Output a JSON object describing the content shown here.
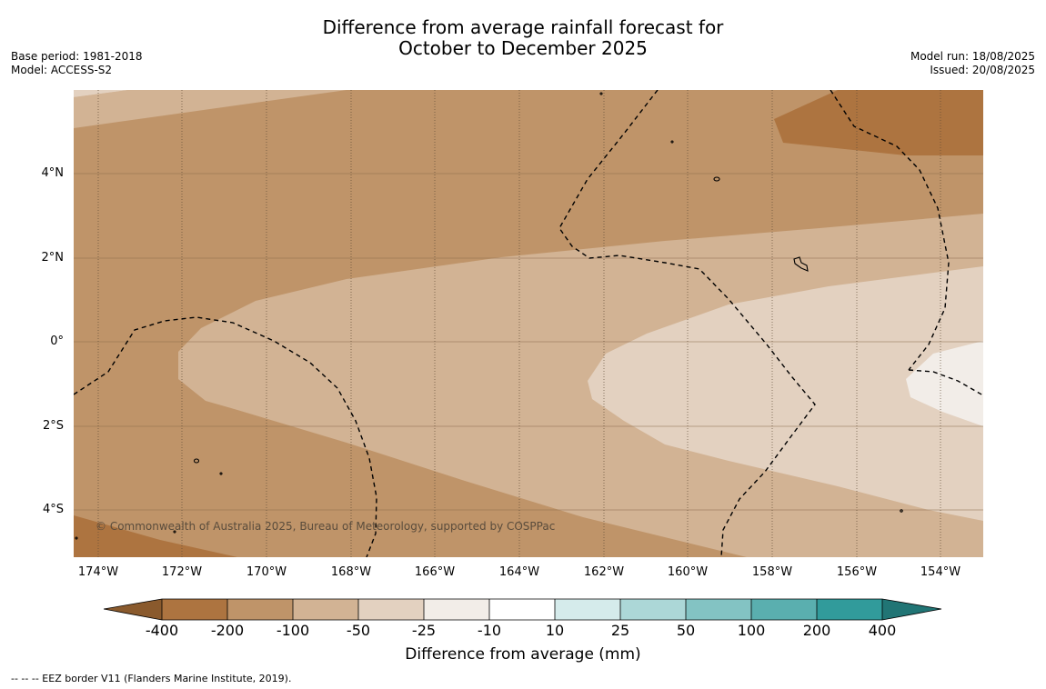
{
  "title": {
    "line1": "Difference from average rainfall forecast for",
    "line2": "October to December 2025"
  },
  "meta": {
    "base_period": "Base period: 1981-2018",
    "model": "Model: ACCESS-S2",
    "model_run": "Model run: 18/08/2025",
    "issued": "Issued: 20/08/2025"
  },
  "map": {
    "lat_ticks": [
      "4°N",
      "2°N",
      "0°",
      "2°S",
      "4°S"
    ],
    "lon_ticks": [
      "174°W",
      "172°W",
      "170°W",
      "168°W",
      "166°W",
      "164°W",
      "162°W",
      "160°W",
      "158°W",
      "156°W",
      "154°W"
    ],
    "copyright": "© Commonwealth of Australia 2025, Bureau of Meteorology, supported by COSPPac",
    "colors": {
      "lt_-200": "#ad7440",
      "-200_-100": "#bf9469",
      "-100_-50": "#d2b394",
      "-50_-25": "#e3d1c0",
      "-25_-10": "#f2ede8",
      "-10_10": "#ffffff",
      "10_25": "#d5ebeb",
      "25_50": "#acd7d7",
      "50_100": "#83c3c3",
      "100_200": "#5aafaf",
      "200_400": "#319b9b",
      "gt_400": "#217575",
      "lt_-400": "#8a5a2d"
    }
  },
  "colorbar": {
    "ticks": [
      "-400",
      "-200",
      "-100",
      "-50",
      "-25",
      "-10",
      "10",
      "25",
      "50",
      "100",
      "200",
      "400"
    ],
    "label": "Difference from average (mm)"
  },
  "footnote": "--  --  -- EEZ border V11 (Flanders Marine Institute, 2019)."
}
